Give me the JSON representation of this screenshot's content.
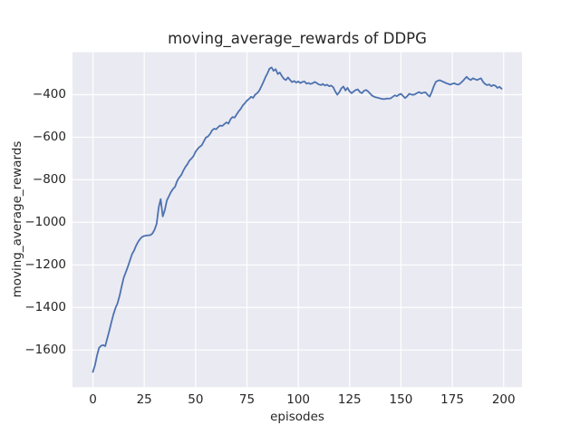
{
  "chart_data": {
    "type": "line",
    "title": "moving_average_rewards of DDPG",
    "xlabel": "episodes",
    "ylabel": "moving_average_rewards",
    "x_range": [
      0,
      199
    ],
    "x_step": 1,
    "series": [
      {
        "name": "moving_average_rewards",
        "color": "#4c72b0",
        "values": [
          -1703,
          -1672,
          -1625,
          -1590,
          -1580,
          -1577,
          -1582,
          -1545,
          -1508,
          -1470,
          -1432,
          -1402,
          -1380,
          -1345,
          -1300,
          -1260,
          -1235,
          -1208,
          -1180,
          -1150,
          -1133,
          -1110,
          -1092,
          -1078,
          -1068,
          -1064,
          -1062,
          -1061,
          -1060,
          -1052,
          -1035,
          -1008,
          -930,
          -891,
          -972,
          -942,
          -897,
          -877,
          -858,
          -843,
          -833,
          -806,
          -790,
          -778,
          -758,
          -740,
          -727,
          -710,
          -700,
          -688,
          -668,
          -655,
          -645,
          -638,
          -620,
          -601,
          -597,
          -585,
          -568,
          -560,
          -563,
          -552,
          -545,
          -547,
          -538,
          -530,
          -536,
          -515,
          -505,
          -508,
          -492,
          -478,
          -466,
          -450,
          -440,
          -428,
          -420,
          -410,
          -415,
          -400,
          -393,
          -381,
          -362,
          -341,
          -318,
          -300,
          -278,
          -272,
          -288,
          -280,
          -303,
          -296,
          -312,
          -326,
          -331,
          -319,
          -331,
          -341,
          -336,
          -343,
          -338,
          -345,
          -340,
          -338,
          -348,
          -345,
          -350,
          -346,
          -340,
          -345,
          -352,
          -355,
          -350,
          -357,
          -353,
          -360,
          -357,
          -365,
          -385,
          -400,
          -388,
          -370,
          -362,
          -380,
          -368,
          -385,
          -393,
          -385,
          -378,
          -375,
          -388,
          -393,
          -382,
          -378,
          -385,
          -395,
          -405,
          -410,
          -413,
          -415,
          -418,
          -420,
          -421,
          -418,
          -419,
          -417,
          -410,
          -403,
          -407,
          -400,
          -396,
          -406,
          -416,
          -408,
          -396,
          -399,
          -401,
          -397,
          -391,
          -388,
          -394,
          -390,
          -389,
          -401,
          -409,
          -388,
          -360,
          -340,
          -334,
          -332,
          -337,
          -341,
          -346,
          -349,
          -353,
          -349,
          -346,
          -351,
          -353,
          -346,
          -337,
          -326,
          -316,
          -326,
          -331,
          -323,
          -327,
          -331,
          -327,
          -323,
          -340,
          -350,
          -355,
          -352,
          -360,
          -355,
          -358,
          -368,
          -363,
          -372
        ]
      }
    ],
    "xticks": [
      0,
      25,
      50,
      75,
      100,
      125,
      150,
      175,
      200
    ],
    "xtick_labels": [
      "0",
      "25",
      "50",
      "75",
      "100",
      "125",
      "150",
      "175",
      "200"
    ],
    "yticks": [
      -400,
      -600,
      -800,
      -1000,
      -1200,
      -1400,
      -1600
    ],
    "ytick_labels": [
      "−400",
      "−600",
      "−800",
      "−1000",
      "−1200",
      "−1400",
      "−1600"
    ],
    "xlim": [
      -9.95,
      208.95
    ],
    "ylim": [
      -1774.6,
      -200.4
    ],
    "grid": true,
    "legend": null,
    "style": {
      "figure_bg": "#ffffff",
      "axes_bg": "#eaeaf2",
      "grid_color": "#ffffff",
      "line_color": "#4c72b0",
      "text_color": "#262626"
    }
  }
}
